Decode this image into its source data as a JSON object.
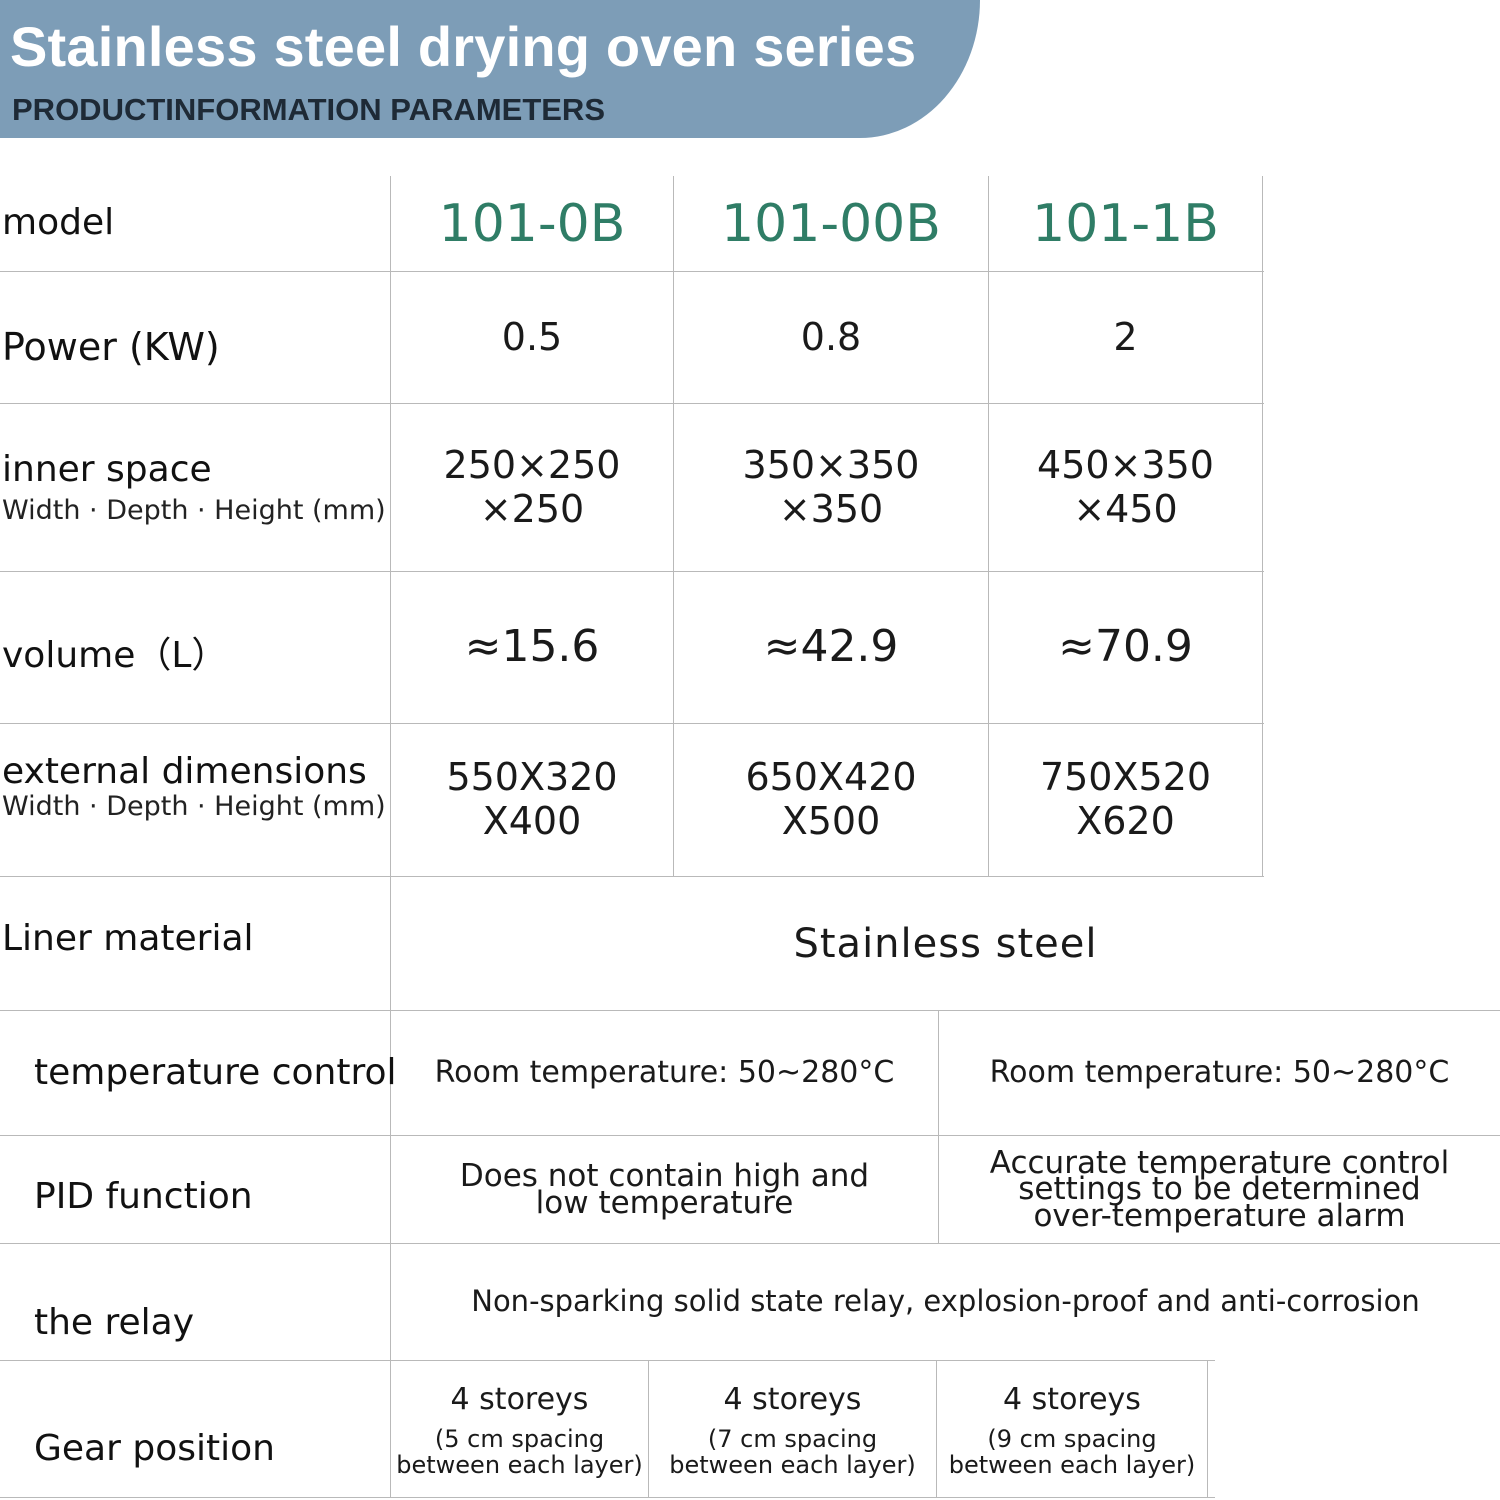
{
  "header": {
    "title": "Stainless steel drying oven series",
    "subtitle": "PRODUCTINFORMATION PARAMETERS"
  },
  "rows": {
    "model": {
      "label": "model",
      "values": [
        "101-0B",
        "101-00B",
        "101-1B"
      ]
    },
    "power": {
      "label": "Power (KW)",
      "values": [
        "0.5",
        "0.8",
        "2"
      ]
    },
    "inner_space": {
      "label": "inner space",
      "sublabel": "Width · Depth · Height (mm)",
      "values": [
        {
          "line1": "250×250",
          "line2": "×250"
        },
        {
          "line1": "350×350",
          "line2": "×350"
        },
        {
          "line1": "450×350",
          "line2": "×450"
        }
      ]
    },
    "volume": {
      "label": "volume（L）",
      "values": [
        "≈15.6",
        "≈42.9",
        "≈70.9"
      ]
    },
    "external_dimensions": {
      "label": "external dimensions",
      "sublabel": "Width · Depth · Height (mm)",
      "values": [
        {
          "line1": "550X320",
          "line2": "X400"
        },
        {
          "line1": "650X420",
          "line2": "X500"
        },
        {
          "line1": "750X520",
          "line2": "X620"
        }
      ]
    },
    "liner_material": {
      "label": "Liner material",
      "value": "Stainless steel"
    },
    "temperature_control": {
      "label": "temperature control",
      "values": [
        "Room temperature: 50~280°C",
        "Room temperature: 50~280°C"
      ]
    },
    "pid_function": {
      "label": "PID function",
      "left": {
        "line1": "Does not contain high and",
        "line2": "low temperature"
      },
      "right": {
        "line1": "Accurate temperature control",
        "line2": "settings to be determined",
        "line3": "over-temperature alarm"
      }
    },
    "relay": {
      "label": "the relay",
      "value": "Non-sparking solid state relay, explosion-proof and anti-corrosion"
    },
    "gear_position": {
      "label": "Gear position",
      "values": [
        {
          "main": "4 storeys",
          "sub1": "(5 cm spacing",
          "sub2": "between each layer)"
        },
        {
          "main": "4 storeys",
          "sub1": "(7 cm spacing",
          "sub2": "between each layer)"
        },
        {
          "main": "4 storeys",
          "sub1": "(9 cm spacing",
          "sub2": "between each layer)"
        }
      ]
    }
  }
}
